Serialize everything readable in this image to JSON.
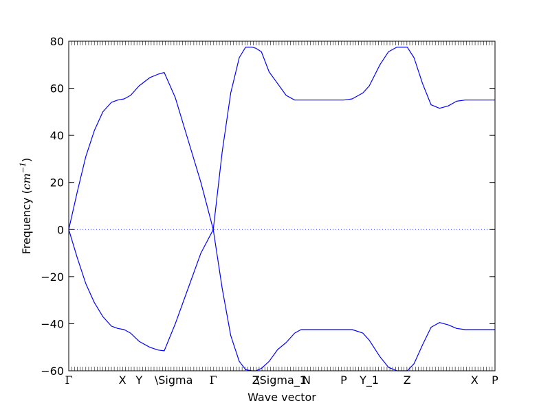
{
  "chart_data": {
    "type": "line",
    "xlabel": "Wave vector",
    "ylabel": {
      "prefix": "Frequency (",
      "unit": "cm",
      "exponent": "−1",
      "suffix": ")"
    },
    "ylim": [
      -60,
      80
    ],
    "yticks": [
      -60,
      -40,
      -20,
      0,
      20,
      40,
      60,
      80
    ],
    "ytick_labels": [
      "−60",
      "−40",
      "−20",
      "0",
      "20",
      "40",
      "60",
      "80"
    ],
    "xlim": [
      0,
      1
    ],
    "high_symmetry_points": [
      {
        "label": "Γ",
        "x": 0.0
      },
      {
        "label": "X",
        "x": 0.126
      },
      {
        "label": "Y",
        "x": 0.165
      },
      {
        "label": "\\Sigma",
        "x": 0.224
      },
      {
        "label": "Γ",
        "x": 0.339
      },
      {
        "label": "Z",
        "x": 0.439
      },
      {
        "label": "\\Sigma_1",
        "x": 0.452
      },
      {
        "label": "N",
        "x": 0.558
      },
      {
        "label": "P",
        "x": 0.645
      },
      {
        "label": "Y_1",
        "x": 0.705
      },
      {
        "label": "Z",
        "x": 0.794
      },
      {
        "label": "X",
        "x": 0.952
      },
      {
        "label": "P",
        "x": 1.0
      }
    ],
    "zero_line": {
      "y": 0,
      "style": "dotted"
    },
    "grid": false,
    "series": [
      {
        "color": "#0000ff",
        "x": [
          0.0,
          0.02,
          0.04,
          0.06,
          0.08,
          0.1,
          0.115,
          0.13,
          0.145,
          0.165,
          0.19,
          0.21,
          0.224,
          0.25,
          0.28,
          0.31,
          0.339,
          0.36,
          0.38,
          0.4,
          0.415,
          0.43,
          0.439,
          0.452,
          0.47,
          0.49,
          0.51,
          0.53,
          0.545,
          0.558,
          0.6,
          0.645,
          0.665,
          0.69,
          0.705,
          0.73,
          0.75,
          0.77,
          0.794,
          0.81,
          0.83,
          0.85,
          0.87,
          0.89,
          0.91,
          0.93,
          0.952,
          1.0
        ],
        "y": [
          0,
          16,
          31,
          42,
          50,
          54,
          55,
          55.5,
          57,
          61,
          64.5,
          66,
          66.7,
          56,
          38,
          20,
          0,
          33,
          58,
          73,
          77.5,
          77.5,
          77,
          75.5,
          67,
          62,
          57,
          55,
          55,
          55,
          55,
          55,
          55.5,
          58,
          61,
          70,
          75.5,
          77.5,
          77.5,
          73,
          62,
          53,
          51.5,
          52.5,
          54.5,
          55,
          55,
          55
        ]
      },
      {
        "color": "#0000ff",
        "x": [
          0.0,
          0.02,
          0.04,
          0.06,
          0.08,
          0.1,
          0.115,
          0.13,
          0.145,
          0.165,
          0.19,
          0.21,
          0.224,
          0.25,
          0.28,
          0.31,
          0.339,
          0.36,
          0.38,
          0.4,
          0.415,
          0.43,
          0.439,
          0.452,
          0.47,
          0.49,
          0.51,
          0.53,
          0.545,
          0.558,
          0.6,
          0.645,
          0.665,
          0.69,
          0.705,
          0.73,
          0.75,
          0.77,
          0.794,
          0.81,
          0.83,
          0.85,
          0.87,
          0.89,
          0.91,
          0.93,
          0.952,
          1.0
        ],
        "y": [
          0,
          -12,
          -23,
          -31,
          -37,
          -41,
          -42,
          -42.5,
          -44,
          -47.5,
          -50,
          -51.2,
          -51.5,
          -40,
          -25,
          -10,
          0,
          -25,
          -45,
          -56,
          -59.5,
          -60,
          -60,
          -59,
          -56,
          -51,
          -48,
          -44,
          -42.5,
          -42.5,
          -42.5,
          -42.5,
          -42.5,
          -44,
          -47,
          -54,
          -58.5,
          -60,
          -60,
          -57,
          -49,
          -41.5,
          -39.5,
          -40.5,
          -42,
          -42.5,
          -42.5,
          -42.5
        ]
      }
    ]
  }
}
